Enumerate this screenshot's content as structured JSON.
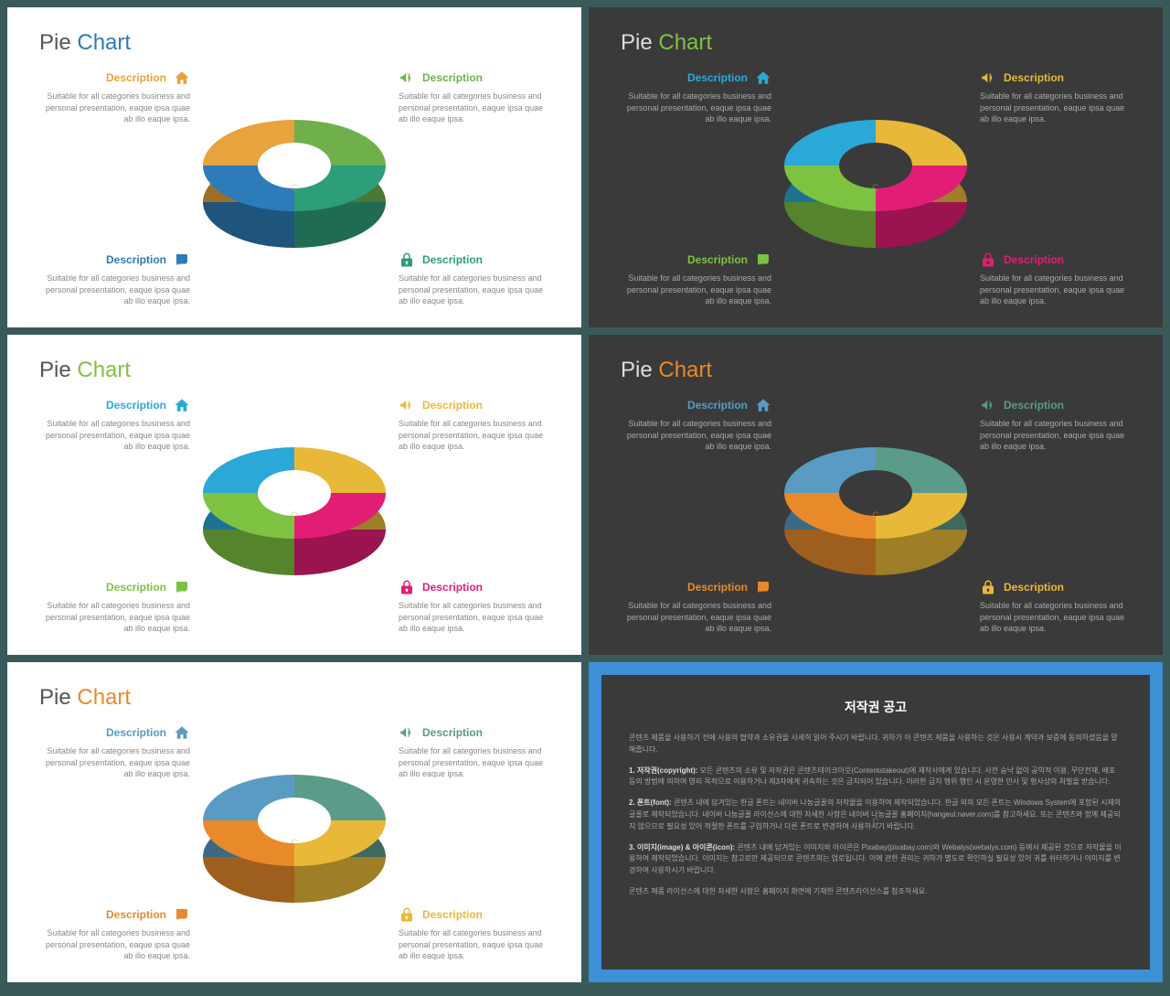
{
  "desc_label": "Description",
  "desc_body": "Suitable for all categories business and personal presentation, eaque ipsa quae ab illo eaque ipsa.",
  "watermark": "C",
  "slides": [
    {
      "bg": "light",
      "title1": "Pie",
      "title2": "Chart",
      "title2_color": "#2d7bb8",
      "segs": [
        {
          "color": "#e8a33d",
          "icon": "home"
        },
        {
          "color": "#6fb04a",
          "icon": "megaphone"
        },
        {
          "color": "#2d7bb8",
          "icon": "chat"
        },
        {
          "color": "#2d9d7a",
          "icon": "lock"
        }
      ]
    },
    {
      "bg": "dark",
      "title1": "Pie",
      "title2": "Chart",
      "title2_color": "#7ec242",
      "segs": [
        {
          "color": "#2aa8d8",
          "icon": "home"
        },
        {
          "color": "#e8b938",
          "icon": "megaphone"
        },
        {
          "color": "#7ec242",
          "icon": "chat"
        },
        {
          "color": "#e21d76",
          "icon": "lock"
        }
      ]
    },
    {
      "bg": "light",
      "title1": "Pie",
      "title2": "Chart",
      "title2_color": "#7ec242",
      "segs": [
        {
          "color": "#2aa8d8",
          "icon": "home"
        },
        {
          "color": "#e8b938",
          "icon": "megaphone"
        },
        {
          "color": "#7ec242",
          "icon": "chat"
        },
        {
          "color": "#e21d76",
          "icon": "lock"
        }
      ]
    },
    {
      "bg": "dark",
      "title1": "Pie",
      "title2": "Chart",
      "title2_color": "#e88a2a",
      "segs": [
        {
          "color": "#5a9bc4",
          "icon": "home"
        },
        {
          "color": "#5a9b8a",
          "icon": "megaphone"
        },
        {
          "color": "#e88a2a",
          "icon": "chat"
        },
        {
          "color": "#e8b938",
          "icon": "lock"
        }
      ]
    },
    {
      "bg": "light",
      "title1": "Pie",
      "title2": "Chart",
      "title2_color": "#e88a2a",
      "segs": [
        {
          "color": "#5a9bc4",
          "icon": "home"
        },
        {
          "color": "#5a9b8a",
          "icon": "megaphone"
        },
        {
          "color": "#e88a2a",
          "icon": "chat"
        },
        {
          "color": "#e8b938",
          "icon": "lock"
        }
      ]
    }
  ],
  "copyright": {
    "title": "저작권 공고",
    "intro": "콘텐츠 제품을 사용하기 전에 사용의 협약과 소유권을 사세히 읽어 주시기 바랍니다. 귀하가 이 콘텐츠 제품을 사용하는 것은 사용시 계약과 보증에 동의하셨음을 말해줍니다.",
    "items": [
      {
        "head": "1. 저작권(copyright):",
        "body": "모든 콘텐츠의 소유 및 저작권은 콘텐츠테이크아웃(Contentstakeout)에 제작사에게 있습니다. 사전 승낙 없이 공익적 이용, 무단전재, 배포 등의 방법에 의하여 영리 목적으로 이용하거나 제3자에게 귀속하는 것은 금지되어 있습니다. 이러한 금지 행위 행인 시 운영한 민사 및 형사상의 처벌을 받습니다."
      },
      {
        "head": "2. 폰트(font):",
        "body": "콘텐츠 내에 담겨있는 한글 폰트는 네이버 나눔글꼴의 저작물을 이용하여 제작되었습니다. 한글 외의 모든 폰트는 Windows System에 포함된 시제의 글꼴로 제작되었습니다. 네이버 나눔글꼴 라이선스에 대한 자세한 사항은 네이버 나눔글꼴 홈페이지(hangeul.naver.com)를 참고하세요. 또는 콘텐츠와 함께 제공되지 않으므로 필요성 있어 적절한 폰트를 구입하거나 다른 폰트로 변경하여 사용하시기 바랍니다."
      },
      {
        "head": "3. 이미지(image) & 아이콘(icon):",
        "body": "콘텐츠 내에 담겨있는 이미지와 아이콘은 Pixabay(pixabay.com)와 Webalys(webalys.com) 등에서 제공된 것으로 저작물을 이용하여 제작되었습니다. 이미지는 참고로만 제공되므로 콘텐츠의는 업로됩니다. 이에 관한 권리는 귀하가 별도로 확인하실 필요성 있어 귀를 쉬터하거나 이미지를 변경하여 사용하시기 바랍니다."
      }
    ],
    "footer": "콘텐츠 제품 라이선스에 대한 자세한 사항은 홈페이지 화면에 기재한 콘텐츠라이선스를 참조하세요."
  }
}
